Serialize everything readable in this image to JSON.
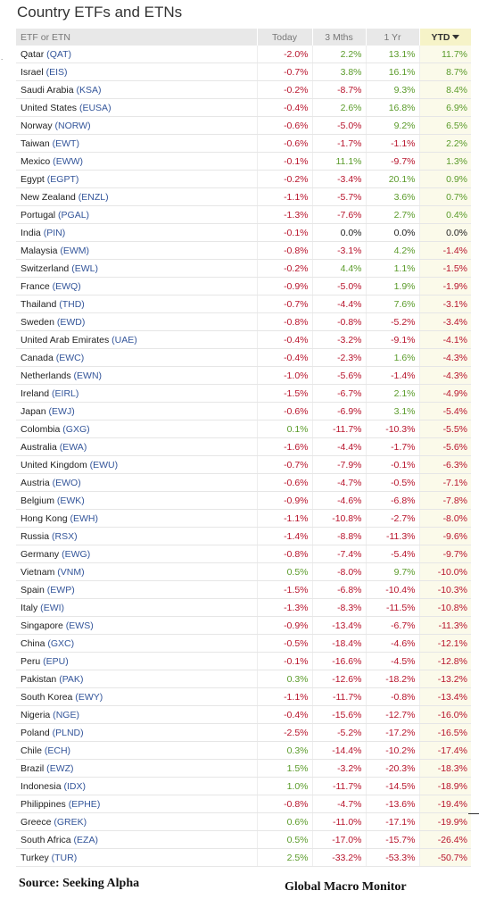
{
  "title": "Country ETFs and ETNs",
  "columns": {
    "name": "ETF or ETN",
    "today": "Today",
    "three_months": "3 Mths",
    "one_year": "1 Yr",
    "ytd": "YTD"
  },
  "rows": [
    {
      "name": "Qatar",
      "ticker": "QAT",
      "today": "-2.0%",
      "m3": "2.2%",
      "y1": "13.1%",
      "ytd": "11.7%"
    },
    {
      "name": "Israel",
      "ticker": "EIS",
      "today": "-0.7%",
      "m3": "3.8%",
      "y1": "16.1%",
      "ytd": "8.7%"
    },
    {
      "name": "Saudi Arabia",
      "ticker": "KSA",
      "today": "-0.2%",
      "m3": "-8.7%",
      "y1": "9.3%",
      "ytd": "8.4%"
    },
    {
      "name": "United States",
      "ticker": "EUSA",
      "today": "-0.4%",
      "m3": "2.6%",
      "y1": "16.8%",
      "ytd": "6.9%"
    },
    {
      "name": "Norway",
      "ticker": "NORW",
      "today": "-0.6%",
      "m3": "-5.0%",
      "y1": "9.2%",
      "ytd": "6.5%"
    },
    {
      "name": "Taiwan",
      "ticker": "EWT",
      "today": "-0.6%",
      "m3": "-1.7%",
      "y1": "-1.1%",
      "ytd": "2.2%"
    },
    {
      "name": "Mexico",
      "ticker": "EWW",
      "today": "-0.1%",
      "m3": "11.1%",
      "y1": "-9.7%",
      "ytd": "1.3%"
    },
    {
      "name": "Egypt",
      "ticker": "EGPT",
      "today": "-0.2%",
      "m3": "-3.4%",
      "y1": "20.1%",
      "ytd": "0.9%"
    },
    {
      "name": "New Zealand",
      "ticker": "ENZL",
      "today": "-1.1%",
      "m3": "-5.7%",
      "y1": "3.6%",
      "ytd": "0.7%"
    },
    {
      "name": "Portugal",
      "ticker": "PGAL",
      "today": "-1.3%",
      "m3": "-7.6%",
      "y1": "2.7%",
      "ytd": "0.4%"
    },
    {
      "name": "India",
      "ticker": "PIN",
      "today": "-0.1%",
      "m3": "0.0%",
      "y1": "0.0%",
      "ytd": "0.0%"
    },
    {
      "name": "Malaysia",
      "ticker": "EWM",
      "today": "-0.8%",
      "m3": "-3.1%",
      "y1": "4.2%",
      "ytd": "-1.4%"
    },
    {
      "name": "Switzerland",
      "ticker": "EWL",
      "today": "-0.2%",
      "m3": "4.4%",
      "y1": "1.1%",
      "ytd": "-1.5%"
    },
    {
      "name": "France",
      "ticker": "EWQ",
      "today": "-0.9%",
      "m3": "-5.0%",
      "y1": "1.9%",
      "ytd": "-1.9%"
    },
    {
      "name": "Thailand",
      "ticker": "THD",
      "today": "-0.7%",
      "m3": "-4.4%",
      "y1": "7.6%",
      "ytd": "-3.1%"
    },
    {
      "name": "Sweden",
      "ticker": "EWD",
      "today": "-0.8%",
      "m3": "-0.8%",
      "y1": "-5.2%",
      "ytd": "-3.4%"
    },
    {
      "name": "United Arab Emirates",
      "ticker": "UAE",
      "today": "-0.4%",
      "m3": "-3.2%",
      "y1": "-9.1%",
      "ytd": "-4.1%"
    },
    {
      "name": "Canada",
      "ticker": "EWC",
      "today": "-0.4%",
      "m3": "-2.3%",
      "y1": "1.6%",
      "ytd": "-4.3%"
    },
    {
      "name": "Netherlands",
      "ticker": "EWN",
      "today": "-1.0%",
      "m3": "-5.6%",
      "y1": "-1.4%",
      "ytd": "-4.3%"
    },
    {
      "name": "Ireland",
      "ticker": "EIRL",
      "today": "-1.5%",
      "m3": "-6.7%",
      "y1": "2.1%",
      "ytd": "-4.9%"
    },
    {
      "name": "Japan",
      "ticker": "EWJ",
      "today": "-0.6%",
      "m3": "-6.9%",
      "y1": "3.1%",
      "ytd": "-5.4%"
    },
    {
      "name": "Colombia",
      "ticker": "GXG",
      "today": "0.1%",
      "m3": "-11.7%",
      "y1": "-10.3%",
      "ytd": "-5.5%"
    },
    {
      "name": "Australia",
      "ticker": "EWA",
      "today": "-1.6%",
      "m3": "-4.4%",
      "y1": "-1.7%",
      "ytd": "-5.6%"
    },
    {
      "name": "United Kingdom",
      "ticker": "EWU",
      "today": "-0.7%",
      "m3": "-7.9%",
      "y1": "-0.1%",
      "ytd": "-6.3%"
    },
    {
      "name": "Austria",
      "ticker": "EWO",
      "today": "-0.6%",
      "m3": "-4.7%",
      "y1": "-0.5%",
      "ytd": "-7.1%"
    },
    {
      "name": "Belgium",
      "ticker": "EWK",
      "today": "-0.9%",
      "m3": "-4.6%",
      "y1": "-6.8%",
      "ytd": "-7.8%"
    },
    {
      "name": "Hong Kong",
      "ticker": "EWH",
      "today": "-1.1%",
      "m3": "-10.8%",
      "y1": "-2.7%",
      "ytd": "-8.0%"
    },
    {
      "name": "Russia",
      "ticker": "RSX",
      "today": "-1.4%",
      "m3": "-8.8%",
      "y1": "-11.3%",
      "ytd": "-9.6%"
    },
    {
      "name": "Germany",
      "ticker": "EWG",
      "today": "-0.8%",
      "m3": "-7.4%",
      "y1": "-5.4%",
      "ytd": "-9.7%"
    },
    {
      "name": "Vietnam",
      "ticker": "VNM",
      "today": "0.5%",
      "m3": "-8.0%",
      "y1": "9.7%",
      "ytd": "-10.0%"
    },
    {
      "name": "Spain",
      "ticker": "EWP",
      "today": "-1.5%",
      "m3": "-6.8%",
      "y1": "-10.4%",
      "ytd": "-10.3%"
    },
    {
      "name": "Italy",
      "ticker": "EWI",
      "today": "-1.3%",
      "m3": "-8.3%",
      "y1": "-11.5%",
      "ytd": "-10.8%"
    },
    {
      "name": "Singapore",
      "ticker": "EWS",
      "today": "-0.9%",
      "m3": "-13.4%",
      "y1": "-6.7%",
      "ytd": "-11.3%"
    },
    {
      "name": "China",
      "ticker": "GXC",
      "today": "-0.5%",
      "m3": "-18.4%",
      "y1": "-4.6%",
      "ytd": "-12.1%"
    },
    {
      "name": "Peru",
      "ticker": "EPU",
      "today": "-0.1%",
      "m3": "-16.6%",
      "y1": "-4.5%",
      "ytd": "-12.8%"
    },
    {
      "name": "Pakistan",
      "ticker": "PAK",
      "today": "0.3%",
      "m3": "-12.6%",
      "y1": "-18.2%",
      "ytd": "-13.2%"
    },
    {
      "name": "South Korea",
      "ticker": "EWY",
      "today": "-1.1%",
      "m3": "-11.7%",
      "y1": "-0.8%",
      "ytd": "-13.4%"
    },
    {
      "name": "Nigeria",
      "ticker": "NGE",
      "today": "-0.4%",
      "m3": "-15.6%",
      "y1": "-12.7%",
      "ytd": "-16.0%"
    },
    {
      "name": "Poland",
      "ticker": "PLND",
      "today": "-2.5%",
      "m3": "-5.2%",
      "y1": "-17.2%",
      "ytd": "-16.5%"
    },
    {
      "name": "Chile",
      "ticker": "ECH",
      "today": "0.3%",
      "m3": "-14.4%",
      "y1": "-10.2%",
      "ytd": "-17.4%"
    },
    {
      "name": "Brazil",
      "ticker": "EWZ",
      "today": "1.5%",
      "m3": "-3.2%",
      "y1": "-20.3%",
      "ytd": "-18.3%"
    },
    {
      "name": "Indonesia",
      "ticker": "IDX",
      "today": "1.0%",
      "m3": "-11.7%",
      "y1": "-14.5%",
      "ytd": "-18.9%"
    },
    {
      "name": "Philippines",
      "ticker": "EPHE",
      "today": "-0.8%",
      "m3": "-4.7%",
      "y1": "-13.6%",
      "ytd": "-19.4%"
    },
    {
      "name": "Greece",
      "ticker": "GREK",
      "today": "0.6%",
      "m3": "-11.0%",
      "y1": "-17.1%",
      "ytd": "-19.9%"
    },
    {
      "name": "South Africa",
      "ticker": "EZA",
      "today": "0.5%",
      "m3": "-17.0%",
      "y1": "-15.7%",
      "ytd": "-26.4%"
    },
    {
      "name": "Turkey",
      "ticker": "TUR",
      "today": "2.5%",
      "m3": "-33.2%",
      "y1": "-53.3%",
      "ytd": "-50.7%"
    }
  ],
  "footer": {
    "source": "Source:  Seeking Alpha",
    "credit": "Global Macro Monitor"
  },
  "colors": {
    "positive": "#5b9b2a",
    "negative": "#b8142c",
    "zero": "#222222",
    "ticker": "#33559a",
    "header_bg": "#e8e8e8",
    "ytd_header_bg": "#f6f3c8"
  },
  "icons": {
    "sort": "sort-desc-icon"
  }
}
